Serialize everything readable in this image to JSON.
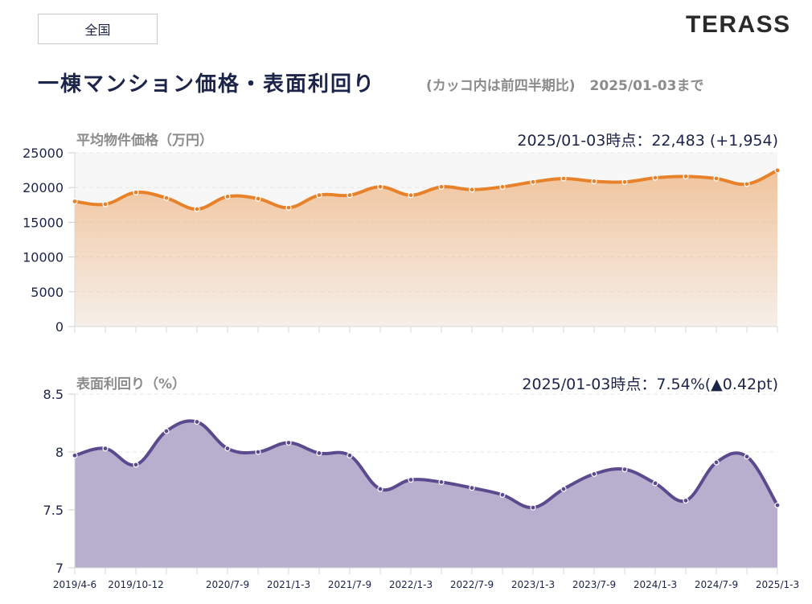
{
  "header": {
    "region_selector": "全国",
    "logo_text": "TERASS",
    "title": "一棟マンション価格・表面利回り",
    "note": "(カッコ内は前四半期比)",
    "as_of": "2025/01-03まで"
  },
  "colors": {
    "price_line": "#e8822a",
    "yield_line": "#5b4a8e",
    "yield_fill": "#b8aece",
    "text_dark": "#1c2449",
    "text_gray": "#8c8c8c"
  },
  "chart_data": [
    {
      "type": "area",
      "title": "平均物件価格（万円）",
      "summary": "2025/01-03時点：22,483 (+1,954)",
      "ylabel": "平均物件価格（万円）",
      "ylim": [
        0,
        25000
      ],
      "yticks": [
        "0",
        "5000",
        "10000",
        "15000",
        "20000",
        "25000"
      ],
      "ytick_values": [
        0,
        5000,
        10000,
        15000,
        20000,
        25000
      ],
      "grid": true,
      "x": [
        "2019/4-6",
        "2019/7-9",
        "2019/10-12",
        "2020/1-3",
        "2020/4-6",
        "2020/7-9",
        "2020/10-12",
        "2021/1-3",
        "2021/4-6",
        "2021/7-9",
        "2021/10-12",
        "2022/1-3",
        "2022/4-6",
        "2022/7-9",
        "2022/10-12",
        "2023/1-3",
        "2023/4-6",
        "2023/7-9",
        "2023/10-12",
        "2024/1-3",
        "2024/4-6",
        "2024/7-9",
        "2024/10-12",
        "2025/1-3"
      ],
      "series": [
        {
          "name": "平均物件価格",
          "values": [
            18000,
            17600,
            19300,
            18500,
            16900,
            18700,
            18400,
            17100,
            18900,
            18900,
            20100,
            18900,
            20100,
            19700,
            20100,
            20800,
            21300,
            20900,
            20800,
            21400,
            21600,
            21300,
            20500,
            22483
          ]
        }
      ]
    },
    {
      "type": "area",
      "title": "表面利回り（%）",
      "summary": "2025/01-03時点：7.54%(▲0.42pt)",
      "ylabel": "表面利回り（%）",
      "ylim": [
        7,
        8.5
      ],
      "yticks": [
        "7",
        "7.5",
        "8",
        "8.5"
      ],
      "ytick_values": [
        7,
        7.5,
        8,
        8.5
      ],
      "grid": true,
      "x": [
        "2019/4-6",
        "2019/7-9",
        "2019/10-12",
        "2020/1-3",
        "2020/4-6",
        "2020/7-9",
        "2020/10-12",
        "2021/1-3",
        "2021/4-6",
        "2021/7-9",
        "2021/10-12",
        "2022/1-3",
        "2022/4-6",
        "2022/7-9",
        "2022/10-12",
        "2023/1-3",
        "2023/4-6",
        "2023/7-9",
        "2023/10-12",
        "2024/1-3",
        "2024/4-6",
        "2024/7-9",
        "2024/10-12",
        "2025/1-3"
      ],
      "xtick_labels": [
        {
          "index": 0,
          "label": "2019/4-6"
        },
        {
          "index": 2,
          "label": "2019/10-12"
        },
        {
          "index": 5,
          "label": "2020/7-9"
        },
        {
          "index": 7,
          "label": "2021/1-3"
        },
        {
          "index": 9,
          "label": "2021/7-9"
        },
        {
          "index": 11,
          "label": "2022/1-3"
        },
        {
          "index": 13,
          "label": "2022/7-9"
        },
        {
          "index": 15,
          "label": "2023/1-3"
        },
        {
          "index": 17,
          "label": "2023/7-9"
        },
        {
          "index": 19,
          "label": "2024/1-3"
        },
        {
          "index": 21,
          "label": "2024/7-9"
        },
        {
          "index": 23,
          "label": "2025/1-3"
        }
      ],
      "series": [
        {
          "name": "表面利回り",
          "values": [
            7.97,
            8.03,
            7.89,
            8.18,
            8.26,
            8.03,
            8.0,
            8.08,
            7.99,
            7.97,
            7.68,
            7.76,
            7.74,
            7.69,
            7.63,
            7.52,
            7.68,
            7.81,
            7.85,
            7.73,
            7.58,
            7.91,
            7.96,
            7.54
          ]
        }
      ]
    }
  ]
}
